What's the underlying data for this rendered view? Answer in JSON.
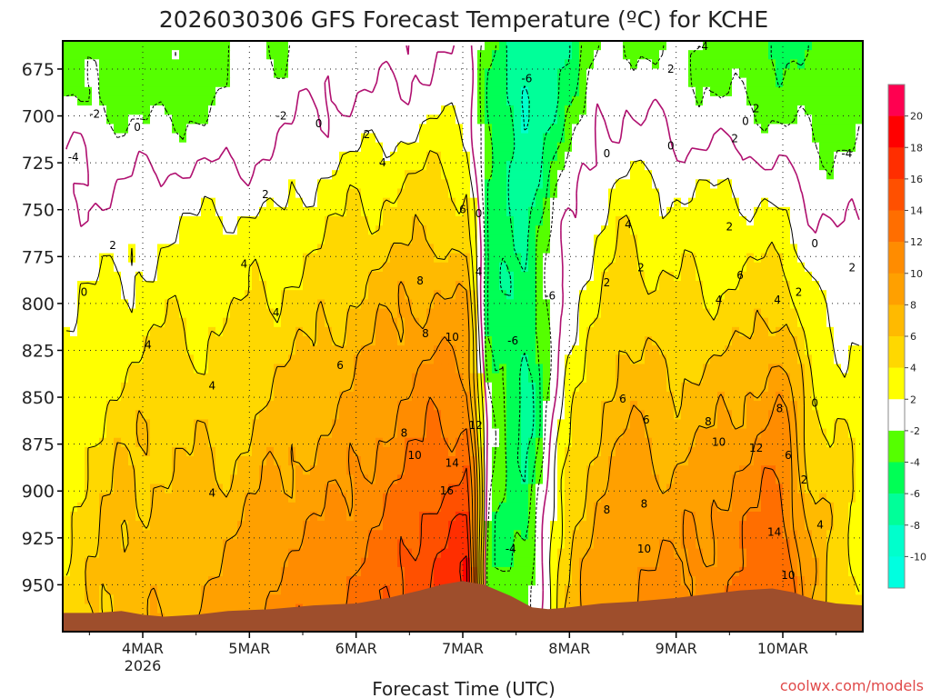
{
  "chart_data": {
    "type": "heatmap",
    "title": "2026030306 GFS Forecast Temperature (ºC) for KCHE",
    "xlabel": "Forecast Time (UTC)",
    "ylabel": "",
    "credit": "coolwx.com/models",
    "x_ticks": [
      {
        "t": 1.0,
        "label": "4MAR",
        "sublabel": "2026"
      },
      {
        "t": 2.0,
        "label": "5MAR",
        "sublabel": ""
      },
      {
        "t": 3.0,
        "label": "6MAR",
        "sublabel": ""
      },
      {
        "t": 4.0,
        "label": "7MAR",
        "sublabel": ""
      },
      {
        "t": 5.0,
        "label": "8MAR",
        "sublabel": ""
      },
      {
        "t": 6.0,
        "label": "9MAR",
        "sublabel": ""
      },
      {
        "t": 7.0,
        "label": "10MAR",
        "sublabel": ""
      }
    ],
    "xlim": [
      0.25,
      7.75
    ],
    "y_ticks": [
      675,
      700,
      725,
      750,
      775,
      800,
      825,
      850,
      875,
      900,
      925,
      950
    ],
    "ylim": [
      660,
      975
    ],
    "colorbar": {
      "levels": [
        20,
        18,
        16,
        14,
        12,
        10,
        8,
        6,
        4,
        2,
        -2,
        -4,
        -6,
        -8,
        -10
      ],
      "bins": [
        {
          "lo": 20,
          "hi": 24,
          "color": "#ff0050"
        },
        {
          "lo": 18,
          "hi": 20,
          "color": "#ff0000"
        },
        {
          "lo": 16,
          "hi": 18,
          "color": "#ff2e00"
        },
        {
          "lo": 14,
          "hi": 16,
          "color": "#ff5000"
        },
        {
          "lo": 12,
          "hi": 14,
          "color": "#ff6e00"
        },
        {
          "lo": 10,
          "hi": 12,
          "color": "#ff8c00"
        },
        {
          "lo": 8,
          "hi": 10,
          "color": "#ffa000"
        },
        {
          "lo": 6,
          "hi": 8,
          "color": "#ffba00"
        },
        {
          "lo": 4,
          "hi": 6,
          "color": "#ffd800"
        },
        {
          "lo": 2,
          "hi": 4,
          "color": "#ffff00"
        },
        {
          "lo": -2,
          "hi": 2,
          "color": "#ffffff"
        },
        {
          "lo": -4,
          "hi": -2,
          "color": "#55ff00"
        },
        {
          "lo": -6,
          "hi": -4,
          "color": "#00ff55"
        },
        {
          "lo": -8,
          "hi": -6,
          "color": "#00ff99"
        },
        {
          "lo": -10,
          "hi": -8,
          "color": "#00ffcc"
        },
        {
          "lo": -14,
          "hi": -10,
          "color": "#00ffe0"
        }
      ]
    },
    "terrain_color": "#9e4e2c",
    "terrain": [
      [
        0.25,
        965
      ],
      [
        0.55,
        965
      ],
      [
        0.8,
        964
      ],
      [
        1.0,
        966
      ],
      [
        1.2,
        967
      ],
      [
        1.5,
        966
      ],
      [
        1.8,
        964
      ],
      [
        2.2,
        963
      ],
      [
        2.6,
        961
      ],
      [
        3.0,
        960
      ],
      [
        3.3,
        957
      ],
      [
        3.6,
        953
      ],
      [
        3.8,
        950
      ],
      [
        4.0,
        948
      ],
      [
        4.2,
        950
      ],
      [
        4.45,
        956
      ],
      [
        4.65,
        962
      ],
      [
        4.8,
        963
      ],
      [
        5.0,
        962
      ],
      [
        5.3,
        960
      ],
      [
        5.6,
        959
      ],
      [
        6.0,
        957
      ],
      [
        6.3,
        955
      ],
      [
        6.6,
        953
      ],
      [
        6.9,
        952
      ],
      [
        7.1,
        954
      ],
      [
        7.3,
        958
      ],
      [
        7.5,
        960
      ],
      [
        7.75,
        961
      ]
    ],
    "anchors": [
      {
        "t": 0.25,
        "temps": [
          -2,
          -2,
          0,
          0,
          1,
          2,
          2,
          2,
          3,
          3,
          4,
          4,
          4
        ]
      },
      {
        "t": 0.75,
        "temps": [
          -3,
          -3,
          -1,
          0,
          1,
          2,
          3,
          4,
          5,
          6,
          6,
          7,
          7
        ]
      },
      {
        "t": 1.25,
        "temps": [
          -3,
          -3,
          -1,
          1,
          2,
          3,
          4,
          5,
          6,
          6,
          7,
          7,
          8
        ]
      },
      {
        "t": 1.75,
        "temps": [
          -2,
          -2,
          -1,
          1,
          3,
          3,
          4,
          4,
          5,
          6,
          7,
          8,
          9
        ]
      },
      {
        "t": 2.25,
        "temps": [
          -2,
          -1,
          0,
          1,
          3,
          4,
          5,
          6,
          7,
          8,
          9,
          10,
          11
        ]
      },
      {
        "t": 2.75,
        "temps": [
          -1,
          0,
          1,
          3,
          4,
          5,
          6,
          7,
          8,
          9,
          10,
          11,
          12
        ]
      },
      {
        "t": 3.25,
        "temps": [
          -1,
          0,
          2,
          4,
          5,
          7,
          8,
          9,
          10,
          11,
          12,
          13,
          14
        ]
      },
      {
        "t": 3.75,
        "temps": [
          0,
          1,
          3,
          5,
          6,
          8,
          9,
          11,
          12,
          13,
          15,
          16,
          17
        ]
      },
      {
        "t": 4.05,
        "temps": [
          0,
          1,
          2,
          4,
          5,
          7,
          9,
          10,
          12,
          14,
          16,
          18,
          19
        ]
      },
      {
        "t": 4.25,
        "temps": [
          -3,
          -4,
          -4,
          -5,
          -5,
          -5,
          -4,
          -3,
          -2,
          -2,
          -3,
          -4,
          -3
        ]
      },
      {
        "t": 4.6,
        "temps": [
          -8,
          -9,
          -8,
          -7,
          -6,
          -6,
          -6,
          -7,
          -7,
          -6,
          -5,
          -4,
          -3
        ]
      },
      {
        "t": 4.95,
        "temps": [
          -6,
          -5,
          -3,
          -1,
          0,
          1,
          1,
          2,
          3,
          4,
          5,
          6,
          6
        ]
      },
      {
        "t": 5.25,
        "temps": [
          -2,
          -1,
          0,
          1,
          2,
          3,
          4,
          5,
          6,
          7,
          8,
          9,
          9
        ]
      },
      {
        "t": 5.5,
        "temps": [
          -2,
          0,
          1,
          3,
          4,
          5,
          6,
          7,
          8,
          9,
          9,
          10,
          10
        ]
      },
      {
        "t": 6.0,
        "temps": [
          -2,
          -1,
          0,
          2,
          3,
          4,
          5,
          6,
          7,
          8,
          9,
          10,
          11
        ]
      },
      {
        "t": 6.5,
        "temps": [
          -3,
          -2,
          0,
          2,
          3,
          4,
          5,
          7,
          8,
          10,
          11,
          11,
          12
        ]
      },
      {
        "t": 7.0,
        "temps": [
          -4,
          -3,
          -1,
          1,
          3,
          5,
          7,
          9,
          11,
          12,
          13,
          14,
          15
        ]
      },
      {
        "t": 7.25,
        "temps": [
          -4,
          -3,
          -2,
          0,
          1,
          2,
          3,
          4,
          5,
          6,
          7,
          8,
          8
        ]
      },
      {
        "t": 7.5,
        "temps": [
          -3,
          -3,
          -2,
          -1,
          0,
          1,
          2,
          3,
          4,
          4,
          5,
          5,
          5
        ]
      },
      {
        "t": 7.75,
        "temps": [
          -3,
          -3,
          -2,
          -1,
          0,
          1,
          2,
          2,
          3,
          3,
          4,
          4,
          4
        ]
      }
    ],
    "anchor_levels": [
      665,
      690,
      715,
      740,
      765,
      790,
      815,
      840,
      865,
      890,
      915,
      940,
      970
    ],
    "contour_labels": [
      {
        "t": 0.45,
        "p": 794,
        "v": "0"
      },
      {
        "t": 0.72,
        "p": 769,
        "v": "2"
      },
      {
        "t": 0.95,
        "p": 706,
        "v": "0"
      },
      {
        "t": 0.55,
        "p": 699,
        "v": "-2"
      },
      {
        "t": 0.35,
        "p": 722,
        "v": "-4"
      },
      {
        "t": 1.05,
        "p": 822,
        "v": "4"
      },
      {
        "t": 1.65,
        "p": 844,
        "v": "4"
      },
      {
        "t": 1.65,
        "p": 901,
        "v": "4"
      },
      {
        "t": 1.95,
        "p": 779,
        "v": "4"
      },
      {
        "t": 2.25,
        "p": 805,
        "v": "4"
      },
      {
        "t": 2.15,
        "p": 742,
        "v": "2"
      },
      {
        "t": 2.3,
        "p": 700,
        "v": "-2"
      },
      {
        "t": 2.65,
        "p": 704,
        "v": "0"
      },
      {
        "t": 2.85,
        "p": 833,
        "v": "6"
      },
      {
        "t": 3.1,
        "p": 710,
        "v": "2"
      },
      {
        "t": 3.25,
        "p": 725,
        "v": "4"
      },
      {
        "t": 3.45,
        "p": 869,
        "v": "8"
      },
      {
        "t": 3.55,
        "p": 881,
        "v": "10"
      },
      {
        "t": 3.6,
        "p": 788,
        "v": "8"
      },
      {
        "t": 3.65,
        "p": 816,
        "v": "8"
      },
      {
        "t": 4.0,
        "p": 750,
        "v": "6"
      },
      {
        "t": 4.15,
        "p": 752,
        "v": "0"
      },
      {
        "t": 4.15,
        "p": 783,
        "v": "4"
      },
      {
        "t": 3.9,
        "p": 818,
        "v": "10"
      },
      {
        "t": 4.12,
        "p": 865,
        "v": "12"
      },
      {
        "t": 3.9,
        "p": 885,
        "v": "14"
      },
      {
        "t": 3.85,
        "p": 900,
        "v": "16"
      },
      {
        "t": 4.45,
        "p": 931,
        "v": "-4"
      },
      {
        "t": 4.47,
        "p": 820,
        "v": "-6"
      },
      {
        "t": 4.82,
        "p": 796,
        "v": "-6"
      },
      {
        "t": 4.6,
        "p": 680,
        "v": "-6"
      },
      {
        "t": 5.35,
        "p": 720,
        "v": "0"
      },
      {
        "t": 5.35,
        "p": 789,
        "v": "2"
      },
      {
        "t": 5.35,
        "p": 910,
        "v": "8"
      },
      {
        "t": 5.5,
        "p": 851,
        "v": "6"
      },
      {
        "t": 5.55,
        "p": 758,
        "v": "4"
      },
      {
        "t": 5.67,
        "p": 781,
        "v": "2"
      },
      {
        "t": 5.72,
        "p": 862,
        "v": "6"
      },
      {
        "t": 5.7,
        "p": 907,
        "v": "8"
      },
      {
        "t": 5.7,
        "p": 931,
        "v": "10"
      },
      {
        "t": 5.95,
        "p": 716,
        "v": "0"
      },
      {
        "t": 6.25,
        "p": 663,
        "v": "-4"
      },
      {
        "t": 5.95,
        "p": 675,
        "v": "2"
      },
      {
        "t": 6.3,
        "p": 863,
        "v": "8"
      },
      {
        "t": 6.4,
        "p": 874,
        "v": "10"
      },
      {
        "t": 6.4,
        "p": 798,
        "v": "4"
      },
      {
        "t": 6.5,
        "p": 759,
        "v": "2"
      },
      {
        "t": 6.55,
        "p": 712,
        "v": "2"
      },
      {
        "t": 6.65,
        "p": 703,
        "v": "0"
      },
      {
        "t": 6.75,
        "p": 696,
        "v": "2"
      },
      {
        "t": 6.6,
        "p": 785,
        "v": "6"
      },
      {
        "t": 6.75,
        "p": 877,
        "v": "12"
      },
      {
        "t": 6.95,
        "p": 798,
        "v": "4"
      },
      {
        "t": 6.97,
        "p": 856,
        "v": "8"
      },
      {
        "t": 6.92,
        "p": 922,
        "v": "14"
      },
      {
        "t": 7.05,
        "p": 945,
        "v": "10"
      },
      {
        "t": 7.05,
        "p": 881,
        "v": "6"
      },
      {
        "t": 7.3,
        "p": 768,
        "v": "0"
      },
      {
        "t": 7.15,
        "p": 794,
        "v": "2"
      },
      {
        "t": 7.3,
        "p": 853,
        "v": "0"
      },
      {
        "t": 7.2,
        "p": 894,
        "v": "2"
      },
      {
        "t": 7.35,
        "p": 918,
        "v": "4"
      },
      {
        "t": 7.6,
        "p": 720,
        "v": "-4"
      },
      {
        "t": 7.65,
        "p": 781,
        "v": "2"
      }
    ]
  }
}
